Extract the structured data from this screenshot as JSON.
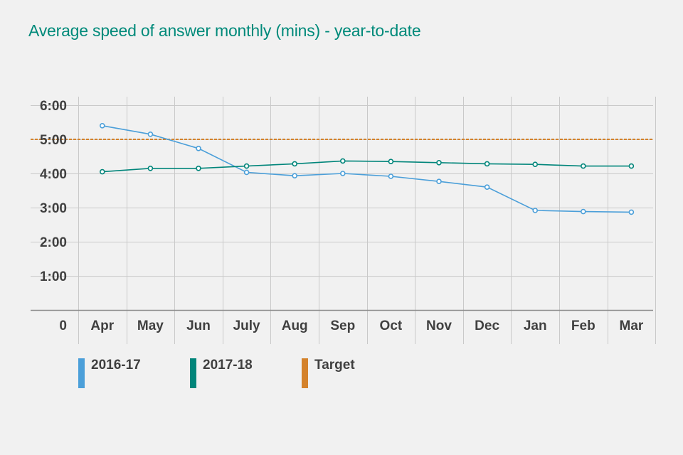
{
  "chart_data": {
    "type": "line",
    "title": "Average speed of answer monthly (mins) - year-to-date",
    "categories": [
      "Apr",
      "May",
      "Jun",
      "July",
      "Aug",
      "Sep",
      "Oct",
      "Nov",
      "Dec",
      "Jan",
      "Feb",
      "Mar"
    ],
    "y_ticks": [
      {
        "value": 0,
        "label": "0"
      },
      {
        "value": 60,
        "label": "1:00"
      },
      {
        "value": 120,
        "label": "2:00"
      },
      {
        "value": 180,
        "label": "3:00"
      },
      {
        "value": 240,
        "label": "4:00"
      },
      {
        "value": 300,
        "label": "5:00"
      },
      {
        "value": 360,
        "label": "6:00"
      }
    ],
    "ylim": [
      0,
      360
    ],
    "y_unit": "seconds",
    "series": [
      {
        "name": "2016-17",
        "color": "#4b9fd9",
        "values": [
          324,
          309,
          284,
          242,
          236,
          240,
          235,
          226,
          216,
          175,
          173,
          172
        ]
      },
      {
        "name": "2017-18",
        "color": "#00857a",
        "values": [
          243,
          249,
          249,
          253,
          257,
          262,
          261,
          259,
          257,
          256,
          253,
          253
        ]
      }
    ],
    "target": {
      "name": "Target",
      "value": 300,
      "color": "#d4822b"
    },
    "legend_position": "bottom",
    "grid": true
  }
}
